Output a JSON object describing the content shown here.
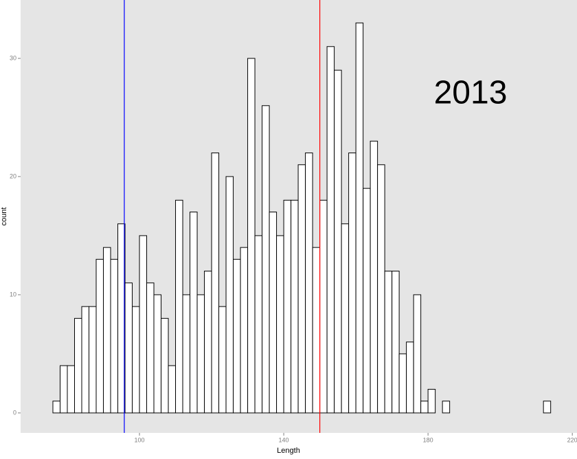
{
  "chart_data": {
    "type": "histogram",
    "annotation": "2013",
    "x_label": "Length",
    "y_label": "count",
    "bins": [
      74,
      76,
      78,
      80,
      82,
      84,
      86,
      88,
      90,
      92,
      94,
      96,
      98,
      100,
      102,
      104,
      106,
      108,
      110,
      112,
      114,
      116,
      118,
      120,
      122,
      124,
      126,
      128,
      130,
      132,
      134,
      136,
      138,
      140,
      142,
      144,
      146,
      148,
      150,
      152,
      154,
      156,
      158,
      160,
      162,
      164,
      166,
      168,
      170,
      172,
      174,
      176,
      178,
      180,
      182,
      184,
      186,
      188,
      190,
      192,
      194,
      196,
      198,
      200,
      202,
      204,
      206,
      208,
      210,
      212,
      214
    ],
    "counts": [
      0,
      1,
      4,
      4,
      8,
      9,
      9,
      13,
      14,
      13,
      16,
      11,
      9,
      15,
      11,
      10,
      8,
      4,
      18,
      10,
      17,
      10,
      12,
      22,
      9,
      20,
      13,
      14,
      30,
      15,
      26,
      17,
      15,
      18,
      18,
      21,
      22,
      14,
      18,
      31,
      29,
      16,
      22,
      33,
      19,
      23,
      21,
      12,
      12,
      5,
      6,
      10,
      1,
      2,
      0,
      1,
      0,
      0,
      0,
      0,
      0,
      0,
      0,
      0,
      0,
      0,
      0,
      0,
      0,
      1
    ],
    "vlines": [
      {
        "value": 95.8,
        "color": "#0000ff"
      },
      {
        "value": 150,
        "color": "#ff0000"
      }
    ],
    "xlim": [
      67.05,
      221.3
    ],
    "ylim": [
      -1.69,
      34.94
    ],
    "xticks": [
      100,
      140,
      180,
      220
    ],
    "yticks": [
      0,
      10,
      20,
      30
    ],
    "color": "#ffffff",
    "edgecolor": "#000000",
    "background": "#e5e5e5",
    "grid": false
  }
}
